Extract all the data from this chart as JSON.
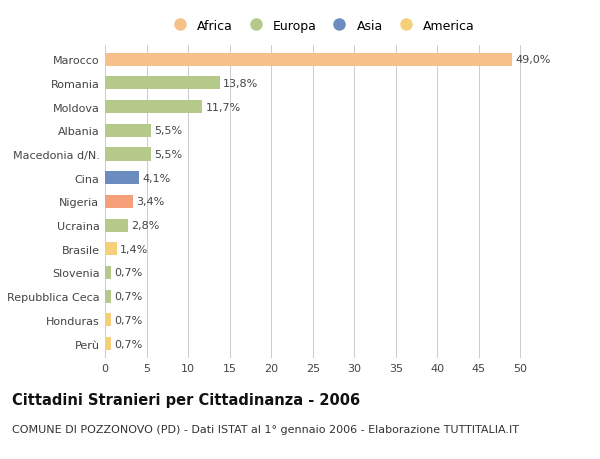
{
  "categories": [
    "Marocco",
    "Romania",
    "Moldova",
    "Albania",
    "Macedonia d/N.",
    "Cina",
    "Nigeria",
    "Ucraina",
    "Brasile",
    "Slovenia",
    "Repubblica Ceca",
    "Honduras",
    "Perù"
  ],
  "values": [
    49.0,
    13.8,
    11.7,
    5.5,
    5.5,
    4.1,
    3.4,
    2.8,
    1.4,
    0.7,
    0.7,
    0.7,
    0.7
  ],
  "labels": [
    "49,0%",
    "13,8%",
    "11,7%",
    "5,5%",
    "5,5%",
    "4,1%",
    "3,4%",
    "2,8%",
    "1,4%",
    "0,7%",
    "0,7%",
    "0,7%",
    "0,7%"
  ],
  "colors": [
    "#F5C08A",
    "#B5C98A",
    "#B5C98A",
    "#B5C98A",
    "#B5C98A",
    "#6B8CBE",
    "#F5A07A",
    "#B5C98A",
    "#F5D07A",
    "#B5C98A",
    "#B5C98A",
    "#F5D07A",
    "#F5D07A"
  ],
  "legend_labels": [
    "Africa",
    "Europa",
    "Asia",
    "America"
  ],
  "legend_colors": [
    "#F5C08A",
    "#B5C98A",
    "#6B8CBE",
    "#F5D07A"
  ],
  "xlim": [
    0,
    52
  ],
  "xticks": [
    0,
    5,
    10,
    15,
    20,
    25,
    30,
    35,
    40,
    45,
    50
  ],
  "title": "Cittadini Stranieri per Cittadinanza - 2006",
  "subtitle": "COMUNE DI POZZONOVO (PD) - Dati ISTAT al 1° gennaio 2006 - Elaborazione TUTTITALIA.IT",
  "bg_color": "#FFFFFF",
  "bar_height": 0.55,
  "grid_color": "#CCCCCC",
  "label_fontsize": 8,
  "tick_fontsize": 8,
  "title_fontsize": 10.5,
  "subtitle_fontsize": 8
}
